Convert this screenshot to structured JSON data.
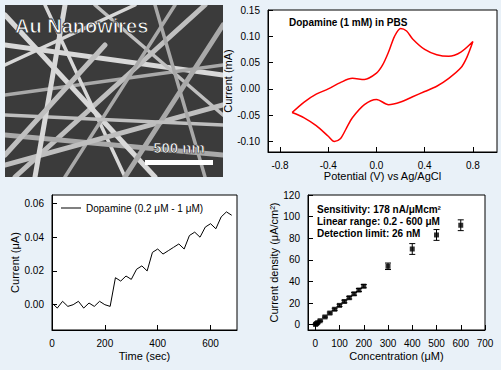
{
  "image_panel": {
    "label": "Au Nanowires",
    "scale_bar": "500 nm"
  },
  "chart_data": [
    {
      "type": "line",
      "title": "Dopamine (1 mM) in PBS",
      "x_label": "Potential (V) vs Ag/AgCl",
      "y_label": "Current (mA)",
      "color": "#ff0000",
      "x": [
        -0.7,
        -0.6,
        -0.5,
        -0.4,
        -0.3,
        -0.2,
        -0.1,
        0.0,
        0.05,
        0.1,
        0.15,
        0.2,
        0.25,
        0.3,
        0.4,
        0.5,
        0.6,
        0.7,
        0.8,
        0.75,
        0.7,
        0.6,
        0.5,
        0.4,
        0.3,
        0.2,
        0.1,
        0.0,
        -0.1,
        -0.2,
        -0.25,
        -0.3,
        -0.35,
        -0.4,
        -0.5,
        -0.6,
        -0.7
      ],
      "values": [
        -0.045,
        -0.025,
        -0.01,
        0.0,
        0.012,
        0.02,
        0.018,
        0.03,
        0.045,
        0.07,
        0.1,
        0.115,
        0.11,
        0.095,
        0.075,
        0.065,
        0.062,
        0.07,
        0.09,
        0.06,
        0.04,
        0.02,
        0.005,
        -0.005,
        -0.015,
        -0.025,
        -0.03,
        -0.02,
        -0.03,
        -0.055,
        -0.075,
        -0.095,
        -0.1,
        -0.09,
        -0.07,
        -0.055,
        -0.045
      ],
      "xlim": [
        -0.9,
        1.0
      ],
      "xticks": [
        -0.8,
        -0.4,
        {
          "value": 0,
          "label": "0.0"
        },
        0.4,
        0.8
      ],
      "ylim": [
        -0.12,
        0.15
      ],
      "yticks": [
        {
          "value": -0.1,
          "label": "-0.10"
        },
        {
          "value": -0.05,
          "label": "-0.05"
        },
        {
          "value": 0,
          "label": "0.00"
        },
        {
          "value": 0.05,
          "label": "0.05"
        },
        {
          "value": 0.1,
          "label": "0.10"
        },
        {
          "value": 0.15,
          "label": "0.15"
        }
      ]
    },
    {
      "type": "line",
      "x_label": "Time (sec)",
      "y_label": "Current (μA)",
      "series": [
        {
          "name": "Dopamine (0.2 μM - 1 μM)",
          "color": "#000000",
          "values": [
            0.001,
            -0.002,
            0.002,
            -0.001,
            0.0,
            0.002,
            -0.002,
            0.001,
            -0.001,
            0.002,
            0.0,
            -0.001,
            0.016,
            0.014,
            0.017,
            0.015,
            0.021,
            0.023,
            0.02,
            0.031,
            0.033,
            0.03,
            0.032,
            0.034,
            0.036,
            0.033,
            0.041,
            0.043,
            0.04,
            0.046,
            0.048,
            0.045,
            0.052,
            0.055,
            0.053
          ]
        }
      ],
      "x": [
        0,
        20,
        40,
        60,
        80,
        100,
        120,
        140,
        160,
        180,
        200,
        220,
        240,
        260,
        280,
        300,
        320,
        340,
        360,
        380,
        400,
        420,
        440,
        460,
        480,
        500,
        520,
        540,
        560,
        580,
        600,
        620,
        640,
        660,
        680
      ],
      "xlim": [
        0,
        700
      ],
      "xticks": [
        0,
        200,
        400,
        600
      ],
      "ylim": [
        -0.015,
        0.065
      ],
      "yticks": [
        {
          "value": 0,
          "label": "0.00"
        },
        {
          "value": 0.02,
          "label": "0.02"
        },
        {
          "value": 0.04,
          "label": "0.04"
        },
        {
          "value": 0.06,
          "label": "0.06"
        }
      ],
      "legend": "top-left"
    },
    {
      "type": "scatter",
      "x_label": "Concentration (μM)",
      "y_label": "Current density (μA/cm²)",
      "annotations": [
        "Sensitivity: 178 nA/μMcm²",
        "Linear range: 0.2 - 600 μM",
        "Detection limit: 26 nM"
      ],
      "color": "#000000",
      "marker": "square",
      "x": [
        1,
        5,
        10,
        20,
        40,
        60,
        80,
        100,
        120,
        140,
        160,
        180,
        200,
        300,
        400,
        500,
        600
      ],
      "values": [
        0.2,
        0.9,
        1.8,
        3.6,
        7.1,
        10.7,
        14.2,
        17.8,
        21.4,
        24.9,
        28.5,
        32,
        35.6,
        54,
        70,
        83,
        92
      ],
      "errors": [
        0.3,
        0.4,
        0.5,
        0.6,
        0.8,
        0.9,
        1,
        1.1,
        1.2,
        1.2,
        1.3,
        1.4,
        1.5,
        3,
        5,
        5,
        5
      ],
      "xlim": [
        -30,
        700
      ],
      "xticks": [
        0,
        100,
        200,
        300,
        400,
        500,
        600,
        700
      ],
      "ylim": [
        -5,
        120
      ],
      "yticks": [
        0,
        20,
        40,
        60,
        80,
        100,
        120
      ]
    }
  ]
}
